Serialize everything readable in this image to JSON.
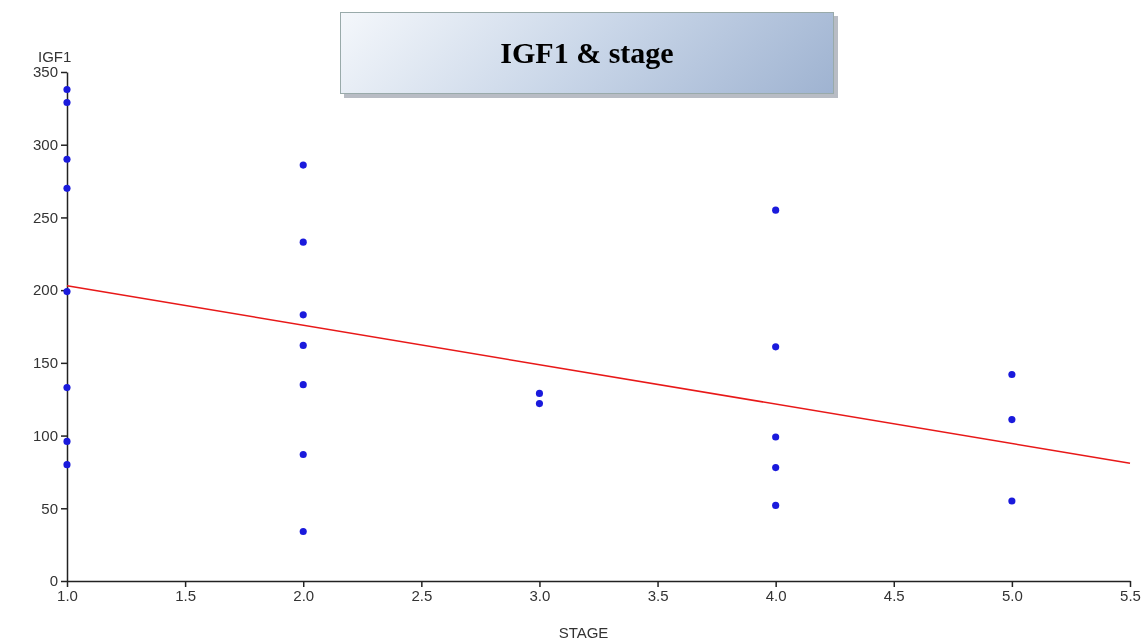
{
  "chart_data": {
    "type": "scatter",
    "title": "IGF1 & stage",
    "xlabel": "STAGE",
    "ylabel": "IGF1",
    "xlim": [
      1,
      5.5
    ],
    "ylim": [
      0,
      350
    ],
    "xticks": [
      {
        "value": 1,
        "label": "1.0"
      },
      {
        "value": 1.5,
        "label": "1.5"
      },
      {
        "value": 2,
        "label": "2.0"
      },
      {
        "value": 2.5,
        "label": "2.5"
      },
      {
        "value": 3,
        "label": "3.0"
      },
      {
        "value": 3.5,
        "label": "3.5"
      },
      {
        "value": 4,
        "label": "4.0"
      },
      {
        "value": 4.5,
        "label": "4.5"
      },
      {
        "value": 5,
        "label": "5.0"
      },
      {
        "value": 5.5,
        "label": "5.5"
      }
    ],
    "yticks": [
      0,
      50,
      100,
      150,
      200,
      250,
      300,
      350
    ],
    "grid": false,
    "series": [
      {
        "marker": "circle",
        "color": "#1a1adc",
        "x": [
          1,
          1,
          1,
          1,
          1,
          1,
          1,
          1,
          2,
          2,
          2,
          2,
          2,
          2,
          2,
          3,
          3,
          4,
          4,
          4,
          4,
          4,
          5,
          5,
          5
        ],
        "values": [
          338,
          329,
          290,
          270,
          199,
          133,
          96,
          80,
          286,
          233,
          183,
          162,
          135,
          87,
          34,
          129,
          122,
          255,
          161,
          99,
          78,
          52,
          142,
          111,
          55
        ]
      },
      {
        "type": "line",
        "color": "#e81818",
        "line_style": "solid",
        "x": [
          1,
          5.5
        ],
        "values": [
          203,
          81
        ]
      }
    ]
  }
}
